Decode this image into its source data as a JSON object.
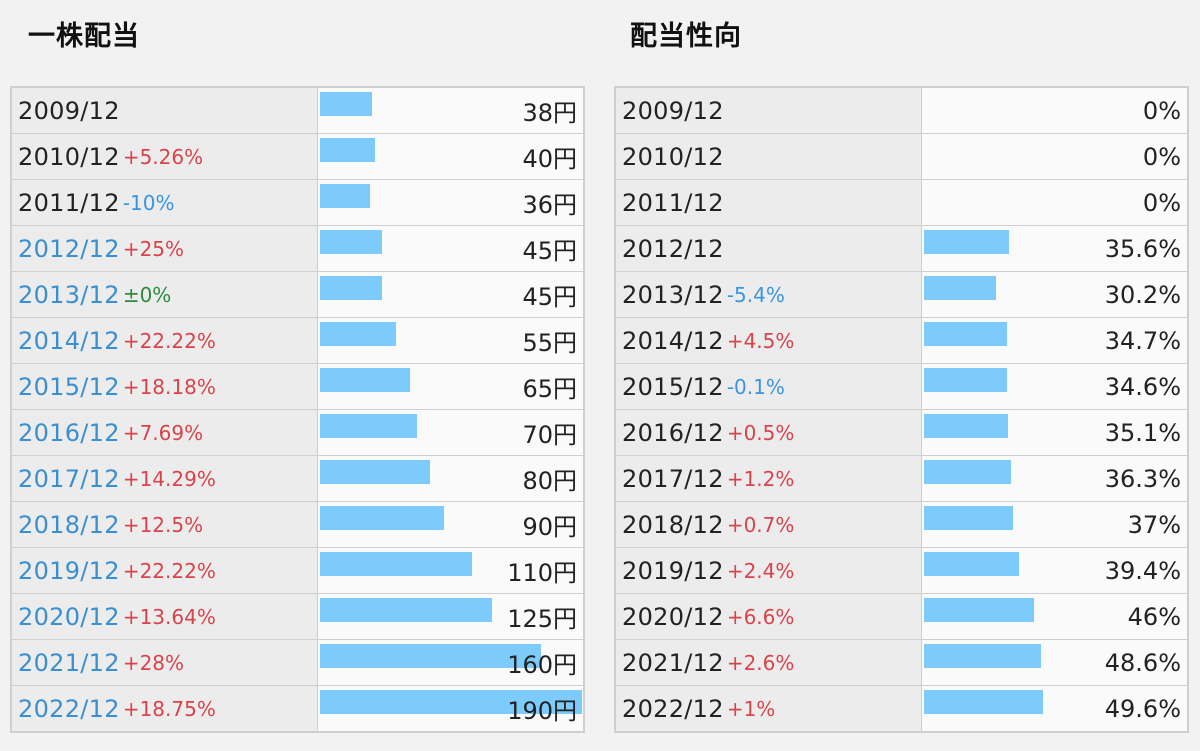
{
  "left": {
    "title": "一株配当",
    "max_value": 190,
    "rows": [
      {
        "period": "2009/12",
        "change": "",
        "change_dir": "",
        "link": false,
        "value": 38,
        "label": "38円"
      },
      {
        "period": "2010/12",
        "change": "+5.26%",
        "change_dir": "up",
        "link": false,
        "value": 40,
        "label": "40円"
      },
      {
        "period": "2011/12",
        "change": "-10%",
        "change_dir": "down",
        "link": false,
        "value": 36,
        "label": "36円"
      },
      {
        "period": "2012/12",
        "change": "+25%",
        "change_dir": "up",
        "link": true,
        "value": 45,
        "label": "45円"
      },
      {
        "period": "2013/12",
        "change": "±0%",
        "change_dir": "flat",
        "link": true,
        "value": 45,
        "label": "45円"
      },
      {
        "period": "2014/12",
        "change": "+22.22%",
        "change_dir": "up",
        "link": true,
        "value": 55,
        "label": "55円"
      },
      {
        "period": "2015/12",
        "change": "+18.18%",
        "change_dir": "up",
        "link": true,
        "value": 65,
        "label": "65円"
      },
      {
        "period": "2016/12",
        "change": "+7.69%",
        "change_dir": "up",
        "link": true,
        "value": 70,
        "label": "70円"
      },
      {
        "period": "2017/12",
        "change": "+14.29%",
        "change_dir": "up",
        "link": true,
        "value": 80,
        "label": "80円"
      },
      {
        "period": "2018/12",
        "change": "+12.5%",
        "change_dir": "up",
        "link": true,
        "value": 90,
        "label": "90円"
      },
      {
        "period": "2019/12",
        "change": "+22.22%",
        "change_dir": "up",
        "link": true,
        "value": 110,
        "label": "110円"
      },
      {
        "period": "2020/12",
        "change": "+13.64%",
        "change_dir": "up",
        "link": true,
        "value": 125,
        "label": "125円"
      },
      {
        "period": "2021/12",
        "change": "+28%",
        "change_dir": "up",
        "link": true,
        "value": 160,
        "label": "160円"
      },
      {
        "period": "2022/12",
        "change": "+18.75%",
        "change_dir": "up",
        "link": true,
        "value": 190,
        "label": "190円"
      }
    ]
  },
  "right": {
    "title": "配当性向",
    "max_value": 100,
    "rows": [
      {
        "period": "2009/12",
        "change": "",
        "change_dir": "",
        "link": false,
        "value": 0,
        "label": "0%"
      },
      {
        "period": "2010/12",
        "change": "",
        "change_dir": "",
        "link": false,
        "value": 0,
        "label": "0%"
      },
      {
        "period": "2011/12",
        "change": "",
        "change_dir": "",
        "link": false,
        "value": 0,
        "label": "0%"
      },
      {
        "period": "2012/12",
        "change": "",
        "change_dir": "",
        "link": false,
        "value": 35.6,
        "label": "35.6%"
      },
      {
        "period": "2013/12",
        "change": "-5.4%",
        "change_dir": "down",
        "link": false,
        "value": 30.2,
        "label": "30.2%"
      },
      {
        "period": "2014/12",
        "change": "+4.5%",
        "change_dir": "up",
        "link": false,
        "value": 34.7,
        "label": "34.7%"
      },
      {
        "period": "2015/12",
        "change": "-0.1%",
        "change_dir": "down",
        "link": false,
        "value": 34.6,
        "label": "34.6%"
      },
      {
        "period": "2016/12",
        "change": "+0.5%",
        "change_dir": "up",
        "link": false,
        "value": 35.1,
        "label": "35.1%"
      },
      {
        "period": "2017/12",
        "change": "+1.2%",
        "change_dir": "up",
        "link": false,
        "value": 36.3,
        "label": "36.3%"
      },
      {
        "period": "2018/12",
        "change": "+0.7%",
        "change_dir": "up",
        "link": false,
        "value": 37,
        "label": "37%"
      },
      {
        "period": "2019/12",
        "change": "+2.4%",
        "change_dir": "up",
        "link": false,
        "value": 39.4,
        "label": "39.4%"
      },
      {
        "period": "2020/12",
        "change": "+6.6%",
        "change_dir": "up",
        "link": false,
        "value": 46,
        "label": "46%"
      },
      {
        "period": "2021/12",
        "change": "+2.6%",
        "change_dir": "up",
        "link": false,
        "value": 48.6,
        "label": "48.6%"
      },
      {
        "period": "2022/12",
        "change": "+1%",
        "change_dir": "up",
        "link": false,
        "value": 49.6,
        "label": "49.6%"
      }
    ]
  },
  "colors": {
    "bar": "#7dcbfa",
    "link_text": "#3a8fd1",
    "change_up": "#d9434b",
    "change_down": "#3a95e0",
    "change_flat": "#2e8a3e"
  }
}
